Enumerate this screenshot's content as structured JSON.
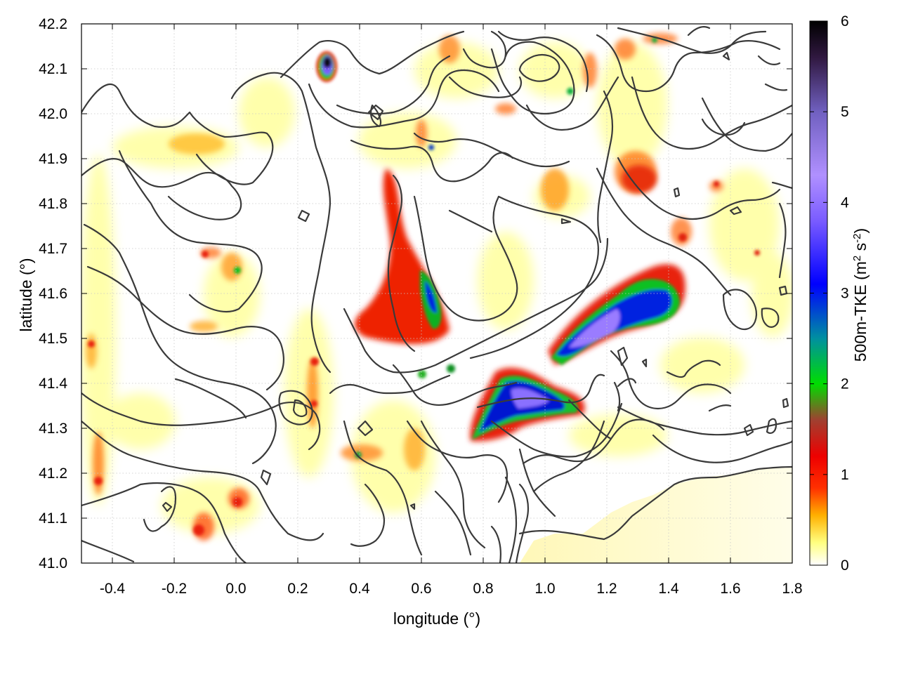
{
  "chart_data": {
    "type": "heatmap",
    "title": "",
    "xlabel": "longitude (°)",
    "ylabel": "latitude (°)",
    "xlim": [
      -0.5,
      1.8
    ],
    "ylim": [
      41.0,
      42.2
    ],
    "x_ticks": [
      "-0.4",
      "-0.2",
      "0.0",
      "0.2",
      "0.4",
      "0.6",
      "0.8",
      "1.0",
      "1.2",
      "1.4",
      "1.6",
      "1.8"
    ],
    "y_ticks": [
      "41.0",
      "41.1",
      "41.2",
      "41.3",
      "41.4",
      "41.5",
      "41.6",
      "41.7",
      "41.8",
      "41.9",
      "42.0",
      "42.1",
      "42.2"
    ],
    "grid": true,
    "colorbar": {
      "label": "500m-TKE (m² s⁻²)",
      "label_main": "500m-TKE (m",
      "label_sup1": "2",
      "label_mid": " s",
      "label_sup2": "-2",
      "label_end": ")",
      "range": [
        0,
        6
      ],
      "ticks": [
        "0",
        "1",
        "2",
        "3",
        "4",
        "5",
        "6"
      ],
      "stops": [
        {
          "value": 0.0,
          "color": "#ffffff"
        },
        {
          "value": 0.25,
          "color": "#ffff80"
        },
        {
          "value": 0.55,
          "color": "#ffb000"
        },
        {
          "value": 0.85,
          "color": "#ff3000"
        },
        {
          "value": 1.2,
          "color": "#ee0000"
        },
        {
          "value": 1.6,
          "color": "#a04030"
        },
        {
          "value": 2.0,
          "color": "#00dd00"
        },
        {
          "value": 2.5,
          "color": "#0090a0"
        },
        {
          "value": 3.1,
          "color": "#0000ff"
        },
        {
          "value": 3.8,
          "color": "#7a5cff"
        },
        {
          "value": 4.3,
          "color": "#b090ff"
        },
        {
          "value": 5.0,
          "color": "#7060c0"
        },
        {
          "value": 5.6,
          "color": "#301840"
        },
        {
          "value": 6.0,
          "color": "#000000"
        }
      ]
    },
    "hotspots": [
      {
        "lon": 0.56,
        "lat": 41.57,
        "tke": 1.3
      },
      {
        "lon": 0.61,
        "lat": 41.59,
        "tke": 2.6
      },
      {
        "lon": 1.19,
        "lat": 41.52,
        "tke": 4.3
      },
      {
        "lon": 1.33,
        "lat": 41.6,
        "tke": 2.4
      },
      {
        "lon": 0.9,
        "lat": 41.38,
        "tke": 4.0
      },
      {
        "lon": 0.8,
        "lat": 41.29,
        "tke": 2.6
      },
      {
        "lon": 0.29,
        "lat": 42.11,
        "tke": 5.6
      },
      {
        "lon": 1.26,
        "lat": 41.85,
        "tke": 1.0
      }
    ]
  }
}
